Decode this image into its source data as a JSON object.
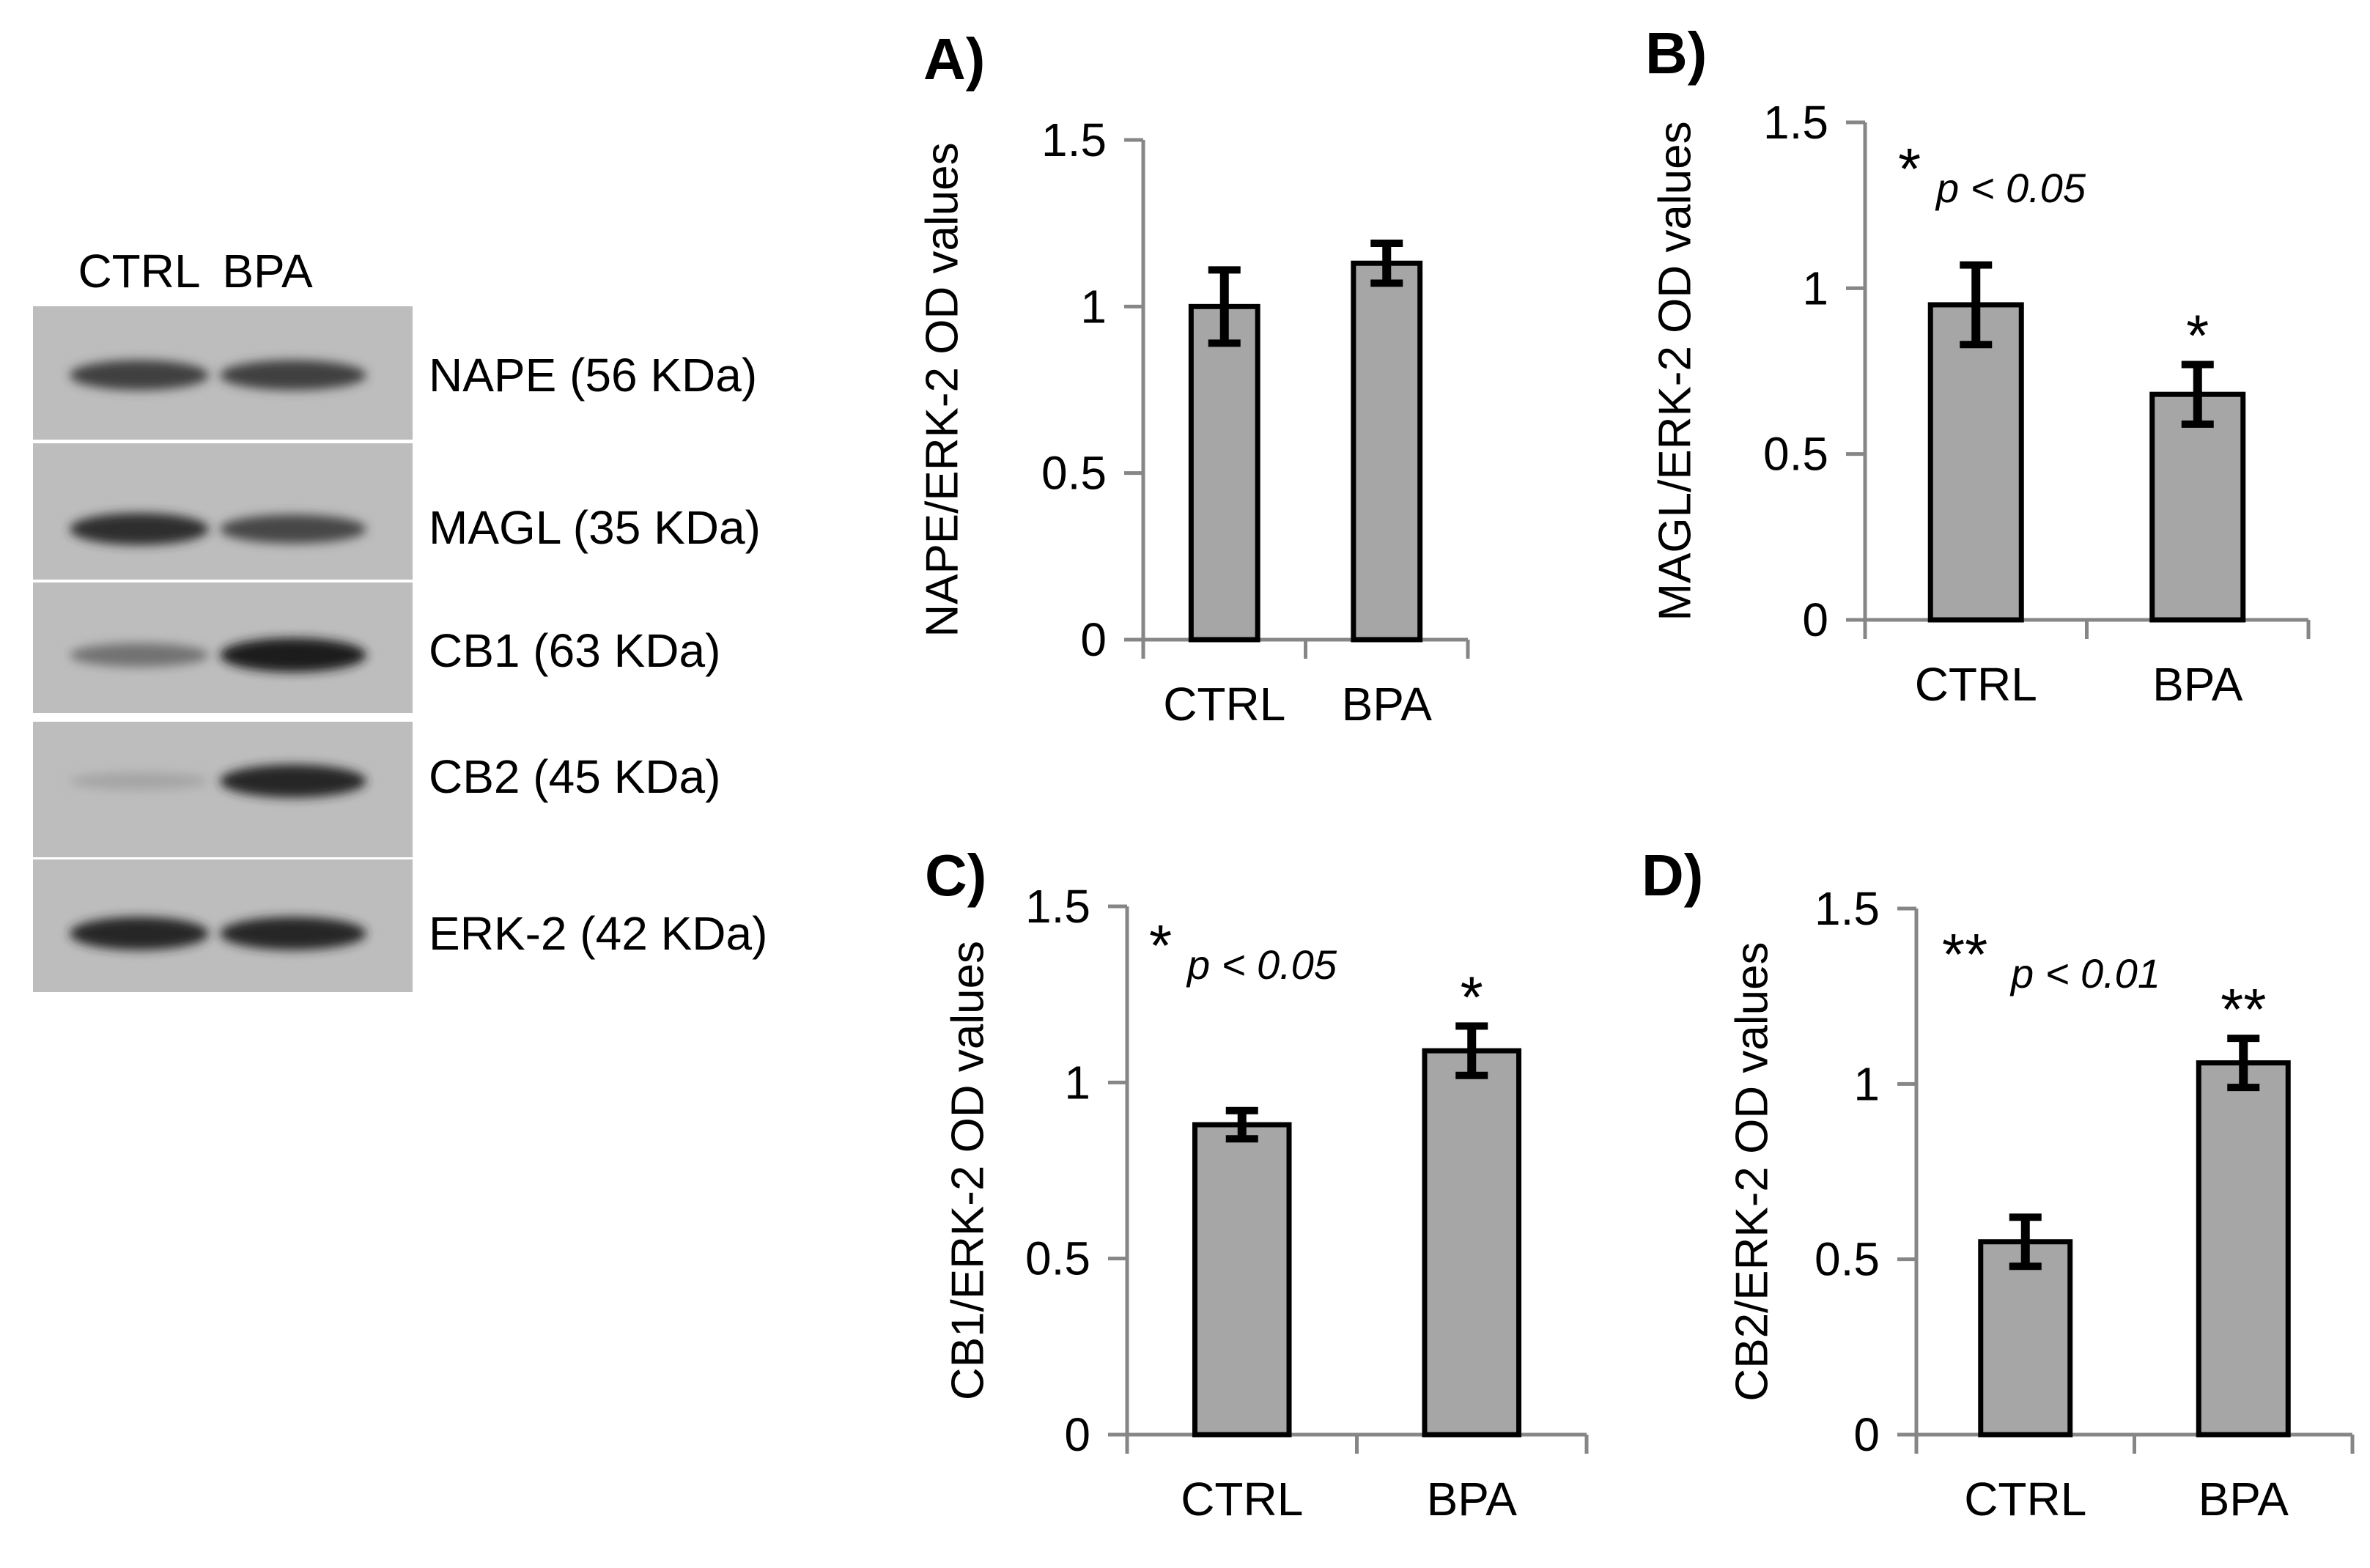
{
  "blot": {
    "lane_labels": [
      "CTRL",
      "BPA"
    ],
    "bands": [
      {
        "label": "NAPE (56 KDa)",
        "ctrl_intensity": 0.75,
        "bpa_intensity": 0.75
      },
      {
        "label": "MAGL (35 KDa)",
        "ctrl_intensity": 0.85,
        "bpa_intensity": 0.7
      },
      {
        "label": "CB1 (63 KDa)",
        "ctrl_intensity": 0.45,
        "bpa_intensity": 0.95
      },
      {
        "label": "CB2 (45 KDa)",
        "ctrl_intensity": 0.15,
        "bpa_intensity": 0.9
      },
      {
        "label": "ERK-2 (42 KDa)",
        "ctrl_intensity": 0.9,
        "bpa_intensity": 0.9
      }
    ]
  },
  "colors": {
    "bar_fill": "#a6a6a6",
    "bar_stroke": "#000000",
    "axis": "#868686",
    "text": "#000000"
  },
  "chart_data": [
    {
      "type": "bar",
      "panel": "A)",
      "ylabel": "NAPE/ERK-2 OD values",
      "categories": [
        "CTRL",
        "BPA"
      ],
      "values": [
        1.0,
        1.13
      ],
      "errors": [
        0.11,
        0.06
      ],
      "ylim": [
        0,
        1.5
      ],
      "yticks": [
        "0",
        "0.5",
        "1",
        "1.5"
      ],
      "significance": [
        "",
        ""
      ],
      "annotation": {
        "stars": "",
        "text": ""
      }
    },
    {
      "type": "bar",
      "panel": "B)",
      "ylabel": "MAGL/ERK-2 OD values",
      "categories": [
        "CTRL",
        "BPA"
      ],
      "values": [
        0.95,
        0.68
      ],
      "errors": [
        0.12,
        0.09
      ],
      "ylim": [
        0,
        1.5
      ],
      "yticks": [
        "0",
        "0.5",
        "1",
        "1.5"
      ],
      "significance": [
        "",
        "*"
      ],
      "annotation": {
        "stars": "*",
        "text": "p < 0.05"
      }
    },
    {
      "type": "bar",
      "panel": "C)",
      "ylabel": "CB1/ERK-2 OD values",
      "categories": [
        "CTRL",
        "BPA"
      ],
      "values": [
        0.88,
        1.09
      ],
      "errors": [
        0.04,
        0.07
      ],
      "ylim": [
        0,
        1.5
      ],
      "yticks": [
        "0",
        "0.5",
        "1",
        "1.5"
      ],
      "significance": [
        "",
        "*"
      ],
      "annotation": {
        "stars": "*",
        "text": "p < 0.05"
      }
    },
    {
      "type": "bar",
      "panel": "D)",
      "ylabel": "CB2/ERK-2 OD values",
      "categories": [
        "CTRL",
        "BPA"
      ],
      "values": [
        0.55,
        1.06
      ],
      "errors": [
        0.07,
        0.07
      ],
      "ylim": [
        0,
        1.5
      ],
      "yticks": [
        "0",
        "0.5",
        "1",
        "1.5"
      ],
      "significance": [
        "",
        "**"
      ],
      "annotation": {
        "stars": "**",
        "text": "p < 0.01"
      }
    }
  ]
}
